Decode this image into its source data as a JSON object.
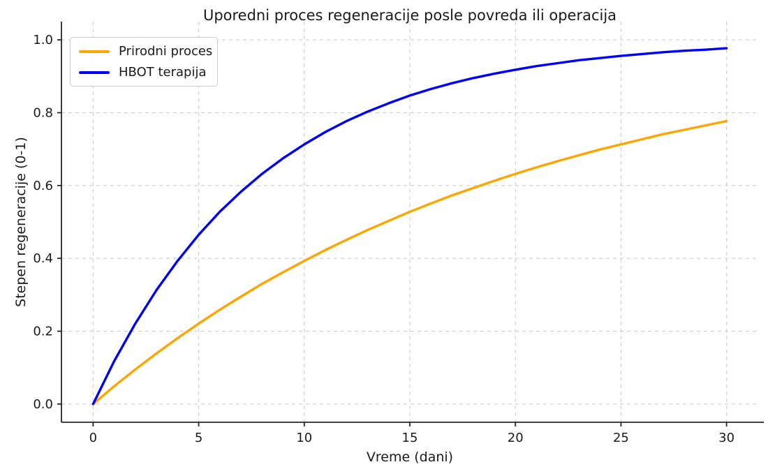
{
  "chart_data": {
    "type": "line",
    "title": "Uporedni proces regeneracije posle povreda ili operacija",
    "xlabel": "Vreme (dani)",
    "ylabel": "Stepen regeneracije (0-1)",
    "xlim": [
      -1.5,
      31.5
    ],
    "ylim": [
      -0.05,
      1.05
    ],
    "xticks": [
      0,
      5,
      10,
      15,
      20,
      25,
      30
    ],
    "xtick_labels": [
      "0",
      "5",
      "10",
      "15",
      "20",
      "25",
      "30"
    ],
    "yticks": [
      0.0,
      0.2,
      0.4,
      0.6,
      0.8,
      1.0
    ],
    "ytick_labels": [
      "0.0",
      "0.2",
      "0.4",
      "0.6",
      "0.8",
      "1.0"
    ],
    "grid": true,
    "grid_style": "dashed",
    "legend_position": "upper left",
    "x": [
      0,
      1,
      2,
      3,
      4,
      5,
      6,
      7,
      8,
      9,
      10,
      11,
      12,
      13,
      14,
      15,
      16,
      17,
      18,
      19,
      20,
      21,
      22,
      23,
      24,
      25,
      26,
      27,
      28,
      29,
      30
    ],
    "series": [
      {
        "name": "Prirodni proces",
        "color": "#FFA500",
        "values": [
          0.0,
          0.049,
          0.095,
          0.139,
          0.181,
          0.221,
          0.259,
          0.295,
          0.33,
          0.362,
          0.393,
          0.423,
          0.451,
          0.478,
          0.503,
          0.528,
          0.551,
          0.573,
          0.593,
          0.613,
          0.632,
          0.65,
          0.667,
          0.683,
          0.699,
          0.713,
          0.727,
          0.741,
          0.753,
          0.765,
          0.777
        ]
      },
      {
        "name": "HBOT terapija",
        "color": "#0000FF",
        "values": [
          0.0,
          0.118,
          0.221,
          0.313,
          0.393,
          0.465,
          0.528,
          0.583,
          0.632,
          0.675,
          0.713,
          0.747,
          0.777,
          0.803,
          0.826,
          0.847,
          0.865,
          0.881,
          0.895,
          0.907,
          0.918,
          0.928,
          0.936,
          0.944,
          0.95,
          0.956,
          0.961,
          0.966,
          0.97,
          0.973,
          0.977
        ]
      }
    ]
  },
  "colors": {
    "background": "#ffffff",
    "grid": "#cccccc",
    "spine": "#262626",
    "text": "#1a1a1a",
    "legend_border": "#cccccc"
  }
}
